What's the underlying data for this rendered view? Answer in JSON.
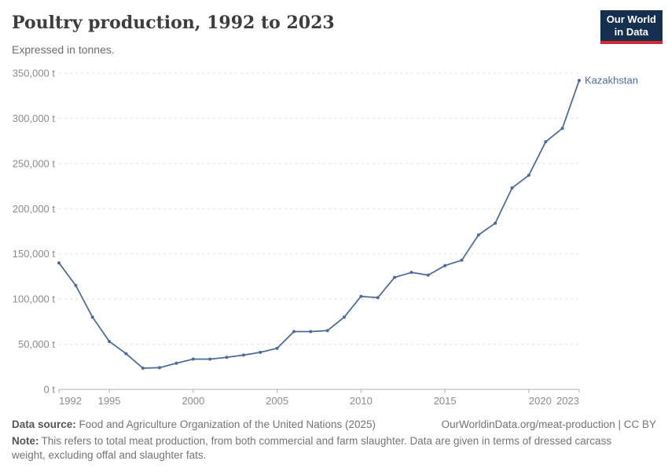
{
  "header": {
    "title": "Poultry production, 1992 to 2023",
    "subtitle": "Expressed in tonnes."
  },
  "logo": {
    "line1": "Our World",
    "line2": "in Data"
  },
  "chart_data": {
    "type": "line",
    "title": "Poultry production, 1992 to 2023",
    "unit": "t",
    "x": [
      1992,
      1993,
      1994,
      1995,
      1996,
      1997,
      1998,
      1999,
      2000,
      2001,
      2002,
      2003,
      2004,
      2005,
      2006,
      2007,
      2008,
      2009,
      2010,
      2011,
      2012,
      2013,
      2014,
      2015,
      2016,
      2017,
      2018,
      2019,
      2020,
      2021,
      2022,
      2023
    ],
    "series": [
      {
        "name": "Kazakhstan",
        "values": [
          140000,
          115000,
          80000,
          53000,
          39500,
          23500,
          24000,
          29000,
          33500,
          33500,
          35500,
          38000,
          41000,
          45500,
          64000,
          64000,
          65000,
          80000,
          103000,
          101500,
          124000,
          129500,
          126500,
          137000,
          143000,
          171000,
          184000,
          223000,
          237000,
          274000,
          289000,
          342000
        ]
      }
    ],
    "ylim": [
      0,
      350000
    ],
    "ytick_step": 50000,
    "xticks": [
      1992,
      1995,
      2000,
      2005,
      2010,
      2015,
      2020,
      2023
    ],
    "grid": "horizontal-dashed",
    "legend_position": "end-of-line-label",
    "markers": true
  },
  "footer": {
    "source_label": "Data source:",
    "source_text": "Food and Agriculture Organization of the United Nations (2025)",
    "link_text": "OurWorldinData.org/meat-production | CC BY",
    "note_label": "Note:",
    "note_text": "This refers to total meat production, from both commercial and farm slaughter. Data are given in terms of dressed carcass weight, excluding offal and slaughter fats."
  },
  "colors": {
    "series_blue": "#4c6a9c",
    "logo_navy": "#15304f",
    "logo_red": "#cf2d33",
    "grid": "#e0e0e0",
    "axis": "#b0b0b0",
    "tick_label": "#8c8c8c",
    "title_text": "#3d3d3d",
    "subtitle_text": "#6e6e6e",
    "footer_text": "#757575"
  }
}
